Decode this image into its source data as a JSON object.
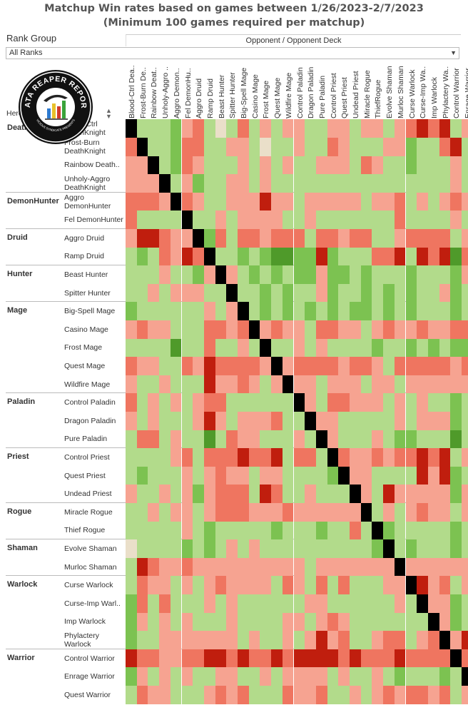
{
  "title": {
    "line1": "Matchup Win rates based on games between 1/26/2023-2/7/2023",
    "line2": "(Minimum 100 games required per matchup)"
  },
  "filter": {
    "label": "Rank Group",
    "value": "All Ranks"
  },
  "column_header": "Opponent / Opponent Deck",
  "row_header": "Hero / Deck",
  "logo": {
    "text_top": "DATA REAPER REPORT",
    "text_bottom": "VICIOUS SYNDICATE PRESENTS"
  },
  "colors": {
    "strong_fav": "#4f9a2a",
    "fav": "#7cc251",
    "slight_fav": "#b2db8b",
    "even": "#eadfc9",
    "slight_unfav": "#f6a391",
    "unfav": "#ef7560",
    "strong_unfav": "#c01e0e",
    "mirror": "#000000"
  },
  "chart_data": {
    "type": "heatmap",
    "title": "Matchup Win rates based on games between 1/26/2023-2/7/2023",
    "subtitle": "(Minimum 100 games required per matchup)",
    "x_labels": [
      "Blood-Ctrl Dea..",
      "Frost-Burn De..",
      "Rainbow Deat..",
      "Unholy-Aggro ..",
      "Aggro Demon..",
      "Fel DemonHu..",
      "Aggro Druid",
      "Ramp Druid",
      "Beast Hunter",
      "Spitter Hunter",
      "Big-Spell Mage",
      "Casino Mage",
      "Frost Mage",
      "Quest Mage",
      "Wildfire Mage",
      "Control Paladin",
      "Dragon Paladin",
      "Pure Paladin",
      "Control Priest",
      "Quest Priest",
      "Undead Priest",
      "Miracle Rogue",
      "ThiefRogue",
      "Evolve Shaman",
      "Murloc Shaman",
      "Curse Warlock",
      "Curse-Imp Wa..",
      "Imp Warlock",
      "Phylactery Wa..",
      "Control Warrior",
      "Enrage Warrior",
      "Quest Warrior"
    ],
    "groups": [
      {
        "class": "DeathKnight",
        "decks": [
          "Blood-Ctrl DeathKnight",
          "Frost-Burn DeathKnight",
          "Rainbow Death..",
          "Unholy-Aggro DeathKnight"
        ]
      },
      {
        "class": "DemonHunter",
        "decks": [
          "Aggro DemonHunter",
          "Fel DemonHunter"
        ]
      },
      {
        "class": "Druid",
        "decks": [
          "Aggro Druid",
          "Ramp Druid"
        ]
      },
      {
        "class": "Hunter",
        "decks": [
          "Beast Hunter",
          "Spitter Hunter"
        ]
      },
      {
        "class": "Mage",
        "decks": [
          "Big-Spell Mage",
          "Casino Mage",
          "Frost Mage",
          "Quest Mage",
          "Wildfire Mage"
        ]
      },
      {
        "class": "Paladin",
        "decks": [
          "Control Paladin",
          "Dragon Paladin",
          "Pure Paladin"
        ]
      },
      {
        "class": "Priest",
        "decks": [
          "Control Priest",
          "Quest Priest",
          "Undead Priest"
        ]
      },
      {
        "class": "Rogue",
        "decks": [
          "Miracle Rogue",
          "Thief Rogue"
        ]
      },
      {
        "class": "Shaman",
        "decks": [
          "Evolve Shaman",
          "Murloc Shaman"
        ]
      },
      {
        "class": "Warlock",
        "decks": [
          "Curse Warlock",
          "Curse-Imp Warl..",
          "Imp Warlock",
          "Phylactery Warlock"
        ]
      },
      {
        "class": "Warrior",
        "decks": [
          "Control Warrior",
          "Enrage Warrior",
          "Quest Warrior"
        ]
      }
    ],
    "scale": {
      "-3": "strongly unfavored",
      "-2": "unfavored",
      "-1": "slightly unfavored",
      "0": "even",
      "1": "slightly favored",
      "2": "favored",
      "3": "strongly favored",
      "9": "mirror"
    },
    "values": [
      [
        9,
        1,
        1,
        1,
        2,
        -1,
        -2,
        1,
        0,
        1,
        -2,
        1,
        -1,
        1,
        -1,
        -1,
        1,
        1,
        -1,
        -1,
        1,
        -1,
        -1,
        1,
        -1,
        -2,
        -3,
        -2,
        -3,
        1,
        -1,
        1
      ],
      [
        -2,
        9,
        1,
        1,
        2,
        -2,
        -2,
        1,
        1,
        -1,
        -1,
        1,
        0,
        1,
        1,
        -1,
        1,
        1,
        -2,
        -1,
        1,
        1,
        1,
        -1,
        -1,
        2,
        1,
        1,
        -2,
        -3,
        1,
        1
      ],
      [
        -1,
        -1,
        9,
        1,
        2,
        -2,
        -1,
        1,
        1,
        1,
        -1,
        1,
        -1,
        1,
        -1,
        1,
        1,
        -1,
        -1,
        -1,
        1,
        -2,
        -1,
        1,
        1,
        2,
        1,
        1,
        1,
        -1,
        1,
        -1
      ],
      [
        -1,
        -1,
        -1,
        9,
        1,
        -1,
        2,
        1,
        1,
        -1,
        -1,
        1,
        -1,
        1,
        1,
        1,
        1,
        1,
        1,
        1,
        1,
        1,
        1,
        1,
        1,
        1,
        1,
        1,
        1,
        -1,
        1,
        -1
      ],
      [
        -2,
        -2,
        -2,
        -1,
        9,
        -2,
        -1,
        1,
        1,
        -1,
        -1,
        -1,
        -3,
        -1,
        -1,
        1,
        -1,
        -1,
        -1,
        -1,
        -1,
        1,
        -1,
        -1,
        -2,
        1,
        -1,
        1,
        -1,
        -2,
        -1,
        -2
      ],
      [
        -2,
        1,
        1,
        1,
        1,
        9,
        1,
        1,
        -1,
        1,
        -1,
        -1,
        -1,
        -1,
        1,
        1,
        -1,
        1,
        1,
        1,
        1,
        1,
        1,
        1,
        -2,
        1,
        1,
        1,
        1,
        -1,
        1,
        -1
      ],
      [
        -1,
        -3,
        -3,
        -2,
        -1,
        -1,
        9,
        2,
        -2,
        1,
        -2,
        -2,
        -1,
        -2,
        -2,
        -2,
        1,
        -2,
        -2,
        -1,
        -2,
        -2,
        1,
        1,
        -1,
        -2,
        -2,
        -2,
        -2,
        1,
        -1,
        -2
      ],
      [
        1,
        2,
        1,
        -2,
        -1,
        -3,
        -2,
        9,
        1,
        1,
        2,
        1,
        2,
        3,
        3,
        2,
        2,
        -3,
        2,
        1,
        1,
        1,
        -2,
        -2,
        -3,
        1,
        -3,
        -2,
        -3,
        3,
        -2,
        -1
      ],
      [
        1,
        1,
        1,
        -1,
        1,
        1,
        2,
        -1,
        9,
        -1,
        1,
        2,
        1,
        2,
        1,
        2,
        2,
        -1,
        2,
        2,
        1,
        2,
        1,
        1,
        1,
        2,
        1,
        1,
        1,
        2,
        -1,
        3
      ],
      [
        1,
        1,
        -1,
        1,
        -1,
        -1,
        -1,
        1,
        1,
        9,
        1,
        1,
        2,
        1,
        2,
        1,
        1,
        -1,
        2,
        1,
        1,
        2,
        1,
        2,
        1,
        2,
        1,
        1,
        -1,
        2,
        1,
        1
      ],
      [
        2,
        1,
        1,
        1,
        1,
        1,
        1,
        -1,
        1,
        -1,
        9,
        1,
        2,
        1,
        2,
        1,
        2,
        1,
        2,
        1,
        2,
        2,
        1,
        2,
        1,
        2,
        1,
        1,
        1,
        2,
        1,
        2
      ],
      [
        -1,
        -2,
        -1,
        -1,
        1,
        1,
        1,
        -2,
        -2,
        -1,
        -2,
        9,
        -1,
        -2,
        -1,
        -1,
        1,
        -2,
        -2,
        -1,
        -1,
        1,
        -1,
        -2,
        -1,
        -1,
        -2,
        -1,
        -1,
        -2,
        -2,
        -1
      ],
      [
        1,
        1,
        1,
        1,
        3,
        1,
        1,
        -2,
        1,
        1,
        -1,
        1,
        9,
        1,
        1,
        -1,
        1,
        -1,
        1,
        1,
        1,
        1,
        2,
        1,
        1,
        2,
        1,
        2,
        1,
        2,
        2,
        1
      ],
      [
        -2,
        -1,
        -1,
        1,
        1,
        -2,
        -1,
        -3,
        -2,
        -2,
        -2,
        -2,
        -1,
        9,
        -1,
        -2,
        -2,
        -2,
        -2,
        -1,
        -2,
        -2,
        -1,
        1,
        -2,
        -2,
        -2,
        -2,
        -2,
        -1,
        -2,
        -3
      ],
      [
        -1,
        1,
        1,
        -1,
        1,
        1,
        1,
        -3,
        -1,
        -1,
        -2,
        -1,
        1,
        -1,
        9,
        -1,
        -1,
        1,
        -1,
        -1,
        -1,
        1,
        -1,
        -1,
        1,
        -1,
        -1,
        -1,
        -1,
        -1,
        -1,
        -2
      ],
      [
        -2,
        1,
        -1,
        1,
        -1,
        1,
        -1,
        -2,
        -2,
        1,
        1,
        1,
        1,
        1,
        1,
        9,
        -1,
        1,
        -2,
        -2,
        -1,
        -1,
        -1,
        1,
        -1,
        1,
        -1,
        1,
        1,
        2,
        1,
        1
      ],
      [
        -1,
        1,
        -1,
        1,
        1,
        1,
        -1,
        -3,
        -1,
        1,
        -1,
        -1,
        -1,
        -2,
        1,
        1,
        9,
        -1,
        -1,
        1,
        1,
        1,
        1,
        1,
        -1,
        1,
        -1,
        -1,
        -1,
        2,
        1,
        1
      ],
      [
        1,
        -2,
        -2,
        1,
        -1,
        1,
        1,
        3,
        1,
        -2,
        -1,
        -1,
        1,
        1,
        1,
        -1,
        1,
        9,
        -1,
        1,
        1,
        1,
        -1,
        1,
        2,
        2,
        1,
        1,
        1,
        3,
        1,
        2
      ],
      [
        1,
        1,
        1,
        1,
        -1,
        -2,
        1,
        -2,
        -2,
        -2,
        -3,
        -2,
        -2,
        -3,
        1,
        -2,
        -2,
        1,
        9,
        -2,
        -1,
        -1,
        -2,
        -1,
        -2,
        -2,
        -3,
        -2,
        -3,
        1,
        -1,
        -2
      ],
      [
        1,
        2,
        1,
        1,
        1,
        -1,
        1,
        -1,
        -2,
        -1,
        -1,
        1,
        -1,
        -1,
        1,
        1,
        1,
        1,
        2,
        9,
        -1,
        -1,
        1,
        1,
        1,
        1,
        -3,
        -1,
        -3,
        2,
        1,
        -2
      ],
      [
        -1,
        1,
        1,
        -1,
        1,
        -1,
        2,
        -1,
        -2,
        -2,
        -2,
        1,
        -3,
        -2,
        1,
        1,
        -1,
        1,
        1,
        1,
        9,
        -1,
        1,
        -3,
        -1,
        -1,
        -1,
        -1,
        -1,
        2,
        -1,
        -1
      ],
      [
        1,
        1,
        -1,
        1,
        -1,
        -1,
        1,
        -1,
        -2,
        -2,
        -2,
        -1,
        -1,
        -1,
        -2,
        -1,
        -1,
        -1,
        -1,
        -1,
        -1,
        9,
        1,
        -1,
        1,
        -1,
        -2,
        -1,
        -1,
        1,
        -1,
        -2
      ],
      [
        1,
        1,
        1,
        1,
        1,
        -1,
        1,
        2,
        1,
        1,
        1,
        1,
        1,
        2,
        1,
        1,
        1,
        2,
        1,
        1,
        -2,
        1,
        9,
        2,
        1,
        1,
        1,
        1,
        1,
        2,
        1,
        2
      ],
      [
        0,
        1,
        1,
        1,
        1,
        2,
        1,
        2,
        1,
        -1,
        1,
        -1,
        1,
        1,
        1,
        1,
        1,
        1,
        1,
        1,
        1,
        1,
        2,
        9,
        1,
        2,
        1,
        1,
        1,
        2,
        1,
        2
      ],
      [
        1,
        -3,
        -2,
        -1,
        -1,
        -2,
        -1,
        -1,
        -1,
        -1,
        -1,
        -1,
        -1,
        -1,
        -1,
        -1,
        1,
        -1,
        -1,
        -1,
        -1,
        -1,
        -1,
        -1,
        9,
        -1,
        -1,
        -1,
        -1,
        -1,
        -1,
        -1
      ],
      [
        1,
        -2,
        -1,
        -1,
        1,
        -1,
        1,
        -1,
        -2,
        -1,
        -1,
        -1,
        -1,
        1,
        -2,
        -1,
        1,
        -2,
        1,
        -2,
        1,
        1,
        1,
        -1,
        -1,
        9,
        -3,
        -1,
        -2,
        1,
        -1,
        -2
      ],
      [
        2,
        -2,
        1,
        -2,
        1,
        1,
        1,
        -1,
        1,
        -1,
        1,
        1,
        1,
        1,
        1,
        1,
        -1,
        -1,
        1,
        1,
        1,
        1,
        1,
        1,
        -1,
        1,
        9,
        -1,
        -1,
        2,
        1,
        1
      ],
      [
        2,
        -1,
        1,
        -1,
        1,
        -1,
        1,
        1,
        1,
        -1,
        1,
        1,
        1,
        1,
        -1,
        -1,
        1,
        -1,
        -2,
        -1,
        1,
        1,
        1,
        1,
        1,
        1,
        1,
        9,
        -1,
        2,
        1,
        1
      ],
      [
        2,
        1,
        1,
        -1,
        -1,
        -1,
        -1,
        -1,
        -1,
        -1,
        1,
        -1,
        1,
        1,
        -1,
        1,
        -1,
        -3,
        -1,
        -2,
        1,
        1,
        -1,
        -2,
        -2,
        1,
        -1,
        -2,
        9,
        -1,
        -3,
        1
      ],
      [
        -3,
        -2,
        -2,
        -1,
        -1,
        -2,
        -2,
        -3,
        -3,
        -2,
        -3,
        -2,
        -2,
        -3,
        -2,
        -3,
        -3,
        -3,
        -3,
        -2,
        -3,
        -2,
        -2,
        -2,
        -3,
        -2,
        -2,
        -2,
        -2,
        9,
        -2,
        -3
      ],
      [
        2,
        -1,
        1,
        -1,
        1,
        -1,
        1,
        1,
        -1,
        -1,
        1,
        1,
        -1,
        1,
        -1,
        -1,
        -1,
        -1,
        1,
        -1,
        1,
        1,
        -1,
        1,
        2,
        1,
        1,
        1,
        2,
        1,
        9,
        1
      ],
      [
        1,
        -2,
        -1,
        -1,
        1,
        1,
        1,
        -1,
        -2,
        -1,
        -2,
        1,
        1,
        1,
        -2,
        -1,
        -1,
        -2,
        1,
        1,
        -1,
        1,
        -1,
        -2,
        -1,
        -2,
        -2,
        -1,
        -2,
        1,
        -1,
        9
      ]
    ]
  }
}
